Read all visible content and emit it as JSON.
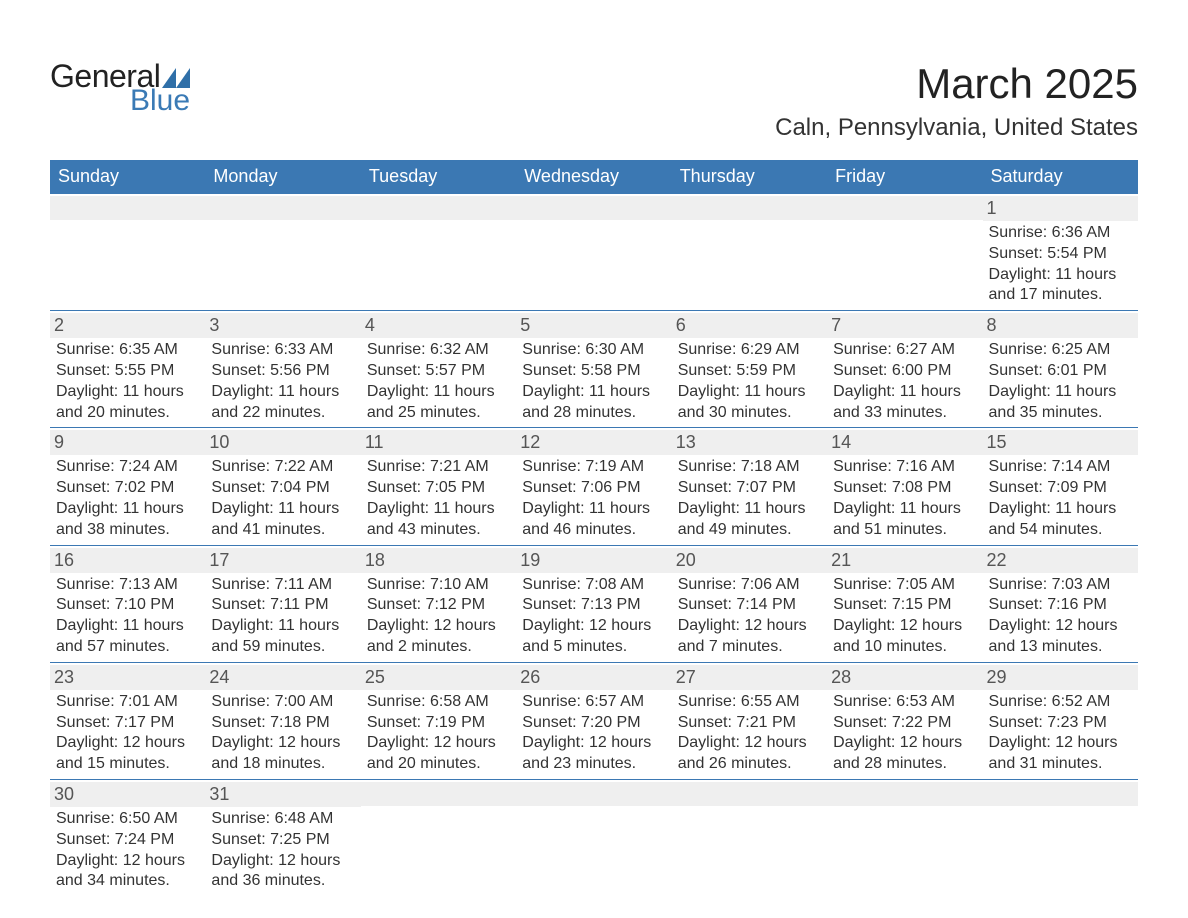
{
  "logo": {
    "text_general": "General",
    "text_blue": "Blue",
    "mark_color": "#2f6fa8"
  },
  "header": {
    "month_title": "March 2025",
    "location": "Caln, Pennsylvania, United States"
  },
  "colors": {
    "header_bg": "#3b78b3",
    "header_text": "#ffffff",
    "daynum_bg": "#efefef",
    "border": "#3b78b3",
    "body_text": "#333333",
    "page_bg": "#ffffff"
  },
  "typography": {
    "month_title_fontsize": 42,
    "location_fontsize": 24,
    "dayheader_fontsize": 18,
    "daynum_fontsize": 18,
    "detail_fontsize": 16
  },
  "calendar": {
    "type": "table",
    "day_names": [
      "Sunday",
      "Monday",
      "Tuesday",
      "Wednesday",
      "Thursday",
      "Friday",
      "Saturday"
    ],
    "weeks": [
      [
        null,
        null,
        null,
        null,
        null,
        null,
        {
          "day": "1",
          "sunrise": "Sunrise: 6:36 AM",
          "sunset": "Sunset: 5:54 PM",
          "daylight1": "Daylight: 11 hours",
          "daylight2": "and 17 minutes."
        }
      ],
      [
        {
          "day": "2",
          "sunrise": "Sunrise: 6:35 AM",
          "sunset": "Sunset: 5:55 PM",
          "daylight1": "Daylight: 11 hours",
          "daylight2": "and 20 minutes."
        },
        {
          "day": "3",
          "sunrise": "Sunrise: 6:33 AM",
          "sunset": "Sunset: 5:56 PM",
          "daylight1": "Daylight: 11 hours",
          "daylight2": "and 22 minutes."
        },
        {
          "day": "4",
          "sunrise": "Sunrise: 6:32 AM",
          "sunset": "Sunset: 5:57 PM",
          "daylight1": "Daylight: 11 hours",
          "daylight2": "and 25 minutes."
        },
        {
          "day": "5",
          "sunrise": "Sunrise: 6:30 AM",
          "sunset": "Sunset: 5:58 PM",
          "daylight1": "Daylight: 11 hours",
          "daylight2": "and 28 minutes."
        },
        {
          "day": "6",
          "sunrise": "Sunrise: 6:29 AM",
          "sunset": "Sunset: 5:59 PM",
          "daylight1": "Daylight: 11 hours",
          "daylight2": "and 30 minutes."
        },
        {
          "day": "7",
          "sunrise": "Sunrise: 6:27 AM",
          "sunset": "Sunset: 6:00 PM",
          "daylight1": "Daylight: 11 hours",
          "daylight2": "and 33 minutes."
        },
        {
          "day": "8",
          "sunrise": "Sunrise: 6:25 AM",
          "sunset": "Sunset: 6:01 PM",
          "daylight1": "Daylight: 11 hours",
          "daylight2": "and 35 minutes."
        }
      ],
      [
        {
          "day": "9",
          "sunrise": "Sunrise: 7:24 AM",
          "sunset": "Sunset: 7:02 PM",
          "daylight1": "Daylight: 11 hours",
          "daylight2": "and 38 minutes."
        },
        {
          "day": "10",
          "sunrise": "Sunrise: 7:22 AM",
          "sunset": "Sunset: 7:04 PM",
          "daylight1": "Daylight: 11 hours",
          "daylight2": "and 41 minutes."
        },
        {
          "day": "11",
          "sunrise": "Sunrise: 7:21 AM",
          "sunset": "Sunset: 7:05 PM",
          "daylight1": "Daylight: 11 hours",
          "daylight2": "and 43 minutes."
        },
        {
          "day": "12",
          "sunrise": "Sunrise: 7:19 AM",
          "sunset": "Sunset: 7:06 PM",
          "daylight1": "Daylight: 11 hours",
          "daylight2": "and 46 minutes."
        },
        {
          "day": "13",
          "sunrise": "Sunrise: 7:18 AM",
          "sunset": "Sunset: 7:07 PM",
          "daylight1": "Daylight: 11 hours",
          "daylight2": "and 49 minutes."
        },
        {
          "day": "14",
          "sunrise": "Sunrise: 7:16 AM",
          "sunset": "Sunset: 7:08 PM",
          "daylight1": "Daylight: 11 hours",
          "daylight2": "and 51 minutes."
        },
        {
          "day": "15",
          "sunrise": "Sunrise: 7:14 AM",
          "sunset": "Sunset: 7:09 PM",
          "daylight1": "Daylight: 11 hours",
          "daylight2": "and 54 minutes."
        }
      ],
      [
        {
          "day": "16",
          "sunrise": "Sunrise: 7:13 AM",
          "sunset": "Sunset: 7:10 PM",
          "daylight1": "Daylight: 11 hours",
          "daylight2": "and 57 minutes."
        },
        {
          "day": "17",
          "sunrise": "Sunrise: 7:11 AM",
          "sunset": "Sunset: 7:11 PM",
          "daylight1": "Daylight: 11 hours",
          "daylight2": "and 59 minutes."
        },
        {
          "day": "18",
          "sunrise": "Sunrise: 7:10 AM",
          "sunset": "Sunset: 7:12 PM",
          "daylight1": "Daylight: 12 hours",
          "daylight2": "and 2 minutes."
        },
        {
          "day": "19",
          "sunrise": "Sunrise: 7:08 AM",
          "sunset": "Sunset: 7:13 PM",
          "daylight1": "Daylight: 12 hours",
          "daylight2": "and 5 minutes."
        },
        {
          "day": "20",
          "sunrise": "Sunrise: 7:06 AM",
          "sunset": "Sunset: 7:14 PM",
          "daylight1": "Daylight: 12 hours",
          "daylight2": "and 7 minutes."
        },
        {
          "day": "21",
          "sunrise": "Sunrise: 7:05 AM",
          "sunset": "Sunset: 7:15 PM",
          "daylight1": "Daylight: 12 hours",
          "daylight2": "and 10 minutes."
        },
        {
          "day": "22",
          "sunrise": "Sunrise: 7:03 AM",
          "sunset": "Sunset: 7:16 PM",
          "daylight1": "Daylight: 12 hours",
          "daylight2": "and 13 minutes."
        }
      ],
      [
        {
          "day": "23",
          "sunrise": "Sunrise: 7:01 AM",
          "sunset": "Sunset: 7:17 PM",
          "daylight1": "Daylight: 12 hours",
          "daylight2": "and 15 minutes."
        },
        {
          "day": "24",
          "sunrise": "Sunrise: 7:00 AM",
          "sunset": "Sunset: 7:18 PM",
          "daylight1": "Daylight: 12 hours",
          "daylight2": "and 18 minutes."
        },
        {
          "day": "25",
          "sunrise": "Sunrise: 6:58 AM",
          "sunset": "Sunset: 7:19 PM",
          "daylight1": "Daylight: 12 hours",
          "daylight2": "and 20 minutes."
        },
        {
          "day": "26",
          "sunrise": "Sunrise: 6:57 AM",
          "sunset": "Sunset: 7:20 PM",
          "daylight1": "Daylight: 12 hours",
          "daylight2": "and 23 minutes."
        },
        {
          "day": "27",
          "sunrise": "Sunrise: 6:55 AM",
          "sunset": "Sunset: 7:21 PM",
          "daylight1": "Daylight: 12 hours",
          "daylight2": "and 26 minutes."
        },
        {
          "day": "28",
          "sunrise": "Sunrise: 6:53 AM",
          "sunset": "Sunset: 7:22 PM",
          "daylight1": "Daylight: 12 hours",
          "daylight2": "and 28 minutes."
        },
        {
          "day": "29",
          "sunrise": "Sunrise: 6:52 AM",
          "sunset": "Sunset: 7:23 PM",
          "daylight1": "Daylight: 12 hours",
          "daylight2": "and 31 minutes."
        }
      ],
      [
        {
          "day": "30",
          "sunrise": "Sunrise: 6:50 AM",
          "sunset": "Sunset: 7:24 PM",
          "daylight1": "Daylight: 12 hours",
          "daylight2": "and 34 minutes."
        },
        {
          "day": "31",
          "sunrise": "Sunrise: 6:48 AM",
          "sunset": "Sunset: 7:25 PM",
          "daylight1": "Daylight: 12 hours",
          "daylight2": "and 36 minutes."
        },
        null,
        null,
        null,
        null,
        null
      ]
    ]
  }
}
